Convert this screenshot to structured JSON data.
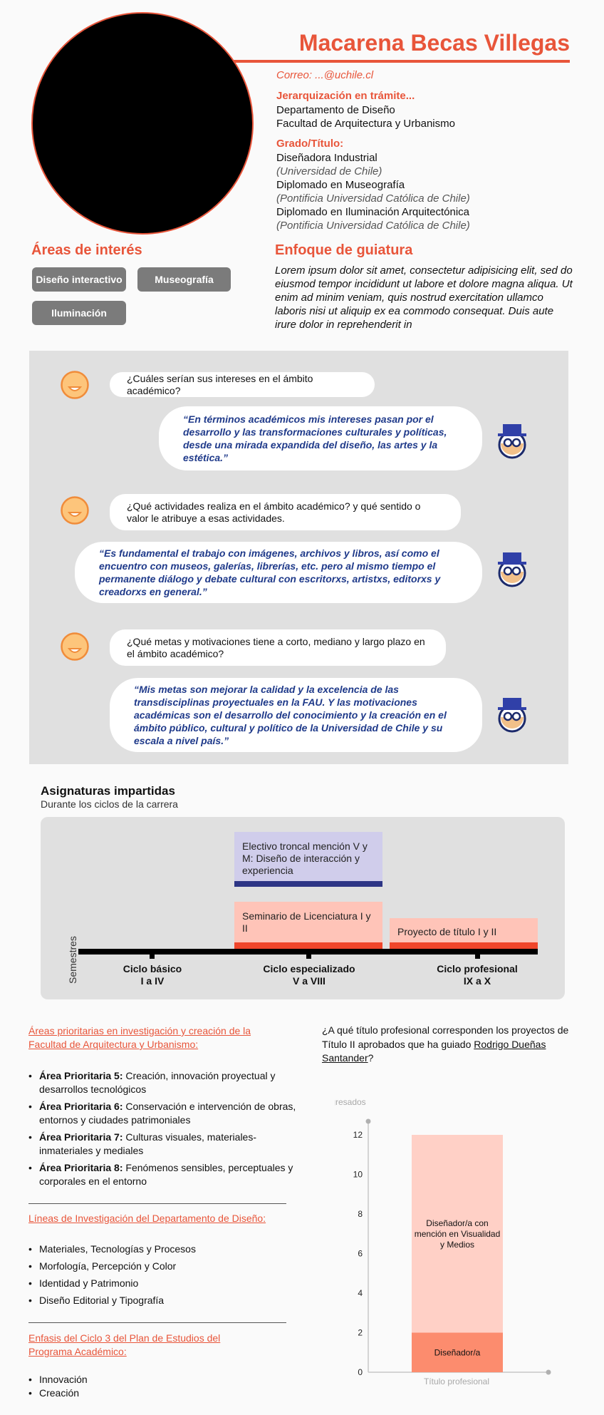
{
  "profile": {
    "name": "Macarena Becas Villegas",
    "email": "Correo: ...@uchile.cl",
    "rank_heading": "Jerarquización en trámite...",
    "department": "Departamento de Diseño",
    "faculty": "Facultad de Arquitectura y Urbanismo",
    "degrees_heading": "Grado/Título:",
    "degrees": [
      {
        "title": "Diseñadora Industrial",
        "institution": "(Universidad de Chile)"
      },
      {
        "title": "Diplomado en Museografía",
        "institution": "(Pontificia Universidad Católica de Chile)"
      },
      {
        "title": "Diplomado en Iluminación Arquitectónica",
        "institution": "(Pontificia Universidad Católica de Chile)"
      }
    ]
  },
  "interests": {
    "title": "Áreas de interés",
    "tags": [
      "Diseño interactivo",
      "Museografía",
      "Iluminación"
    ]
  },
  "approach": {
    "title": "Enfoque de guiatura",
    "text": "Lorem ipsum dolor sit amet, consectetur adipisicing elit, sed do eiusmod tempor incididunt ut labore et dolore magna aliqua. Ut enim ad minim veniam, quis nostrud exercitation ullamco laboris nisi ut aliquip ex ea commodo consequat. Duis aute irure dolor in reprehenderit in"
  },
  "interview": [
    {
      "question": "¿Cuáles serían sus intereses en el ámbito académico?",
      "answer": "“En términos académicos mis intereses pasan por el desarrollo y las transformaciones culturales y políticas, desde una mirada expandida del diseño, las artes y la estética.”"
    },
    {
      "question": "¿Qué actividades realiza en el ámbito académico? y qué sentido o valor le atribuye a esas actividades.",
      "answer": "“Es fundamental el trabajo con imágenes, archivos y libros, así como el encuentro con museos, galerías, librerías, etc. pero al mismo tiempo el permanente diálogo y debate cultural con escritorxs, artistxs, editorxs y creadorxs en general.”"
    },
    {
      "question": "¿Qué metas y motivaciones tiene a corto, mediano y largo plazo en el ámbito académico?",
      "answer": "“Mis metas son mejorar la calidad y la excelencia de las transdisciplinas proyectuales en la FAU. Y las motivaciones académicas son el desarrollo del conocimiento y la creación en el ámbito público, cultural y político de la Universidad de Chile y su escala a nivel país.”"
    }
  ],
  "subjects": {
    "title": "Asignaturas impartidas",
    "subtitle": "Durante los ciclos de la carrera",
    "axis_label": "Semestres",
    "courses": [
      {
        "name": "Electivo troncal mención V y M: Diseño de interacción y experiencia",
        "fill": "#d0cdeb",
        "bar": "#2d3585"
      },
      {
        "name": "Seminario de Licenciatura I y II",
        "fill": "#ffc4b8",
        "bar": "#f0462b"
      },
      {
        "name": "Proyecto de título I y II",
        "fill": "#ffc4b8",
        "bar": "#f0462b"
      }
    ],
    "cycles": [
      {
        "name": "Ciclo básico",
        "range": "I a IV"
      },
      {
        "name": "Ciclo especializado",
        "range": "V a VIII"
      },
      {
        "name": "Ciclo profesional",
        "range": "IX a X"
      }
    ]
  },
  "research": {
    "priority_heading": "Áreas prioritarias en investigación y creación de la Facultad de Arquitectura y Urbanismo:",
    "priority_areas": [
      {
        "label": "Área Prioritaria 5:",
        "text": " Creación, innovación proyectual y desarrollos tecnológicos"
      },
      {
        "label": "Área Prioritaria 6:",
        "text": " Conservación e intervención de obras, entornos y ciudades patrimoniales"
      },
      {
        "label": "Área Prioritaria 7:",
        "text": " Culturas visuales, materiales-inmateriales y mediales"
      },
      {
        "label": "Área Prioritaria 8:",
        "text": " Fenómenos sensibles, perceptuales y corporales en el entorno"
      }
    ],
    "lines_heading": "Líneas de Investigación del Departamento de Diseño:",
    "lines": [
      "Materiales, Tecnologías y Procesos",
      "Morfología, Percepción y Color",
      "Identidad y Patrimonio",
      "Diseño Editorial y Tipografía"
    ],
    "emphasis_heading": "Enfasis del Ciclo 3 del Plan de Estudios del Programa Académico:",
    "emphasis": [
      "Innovación",
      "Creación"
    ]
  },
  "thesis_question": {
    "prefix": "¿A qué título profesional corresponden los proyectos de Título II aprobados que ha guiado ",
    "advisor": "Rodrigo Dueñas Santander",
    "suffix": "?"
  },
  "chart_data": {
    "type": "bar",
    "stacked": true,
    "ylabel": "Egresados",
    "xlabel": "Título profesional",
    "ylim": [
      0,
      12
    ],
    "yticks": [
      0,
      2,
      4,
      6,
      8,
      10,
      12
    ],
    "series": [
      {
        "name": "Diseñador/a",
        "values": [
          2
        ],
        "color": "#fc8c6e"
      },
      {
        "name": "Diseñador/a con mención en Visualidad y Medios",
        "values": [
          10
        ],
        "color": "#ffd0c6"
      }
    ]
  }
}
